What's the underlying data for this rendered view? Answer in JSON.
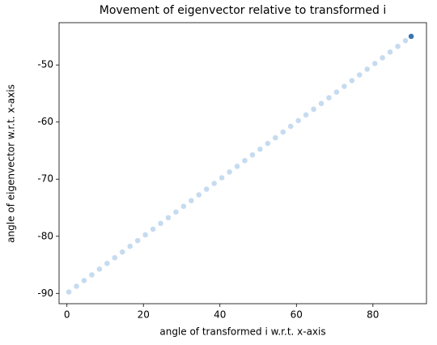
{
  "chart_data": {
    "type": "scatter",
    "title": "Movement of eigenvector relative to transformed i",
    "x_label": "angle of transformed i w.r.t. x-axis",
    "y_label": "angle of eigenvector w.r.t. x-axis",
    "series": [
      {
        "color": "#c6dbef",
        "x": [
          0.5,
          2.5,
          4.5,
          6.5,
          8.5,
          10.5,
          12.5,
          14.5,
          16.5,
          18.5,
          20.5,
          22.5,
          24.5,
          26.5,
          28.5,
          30.5,
          32.5,
          34.5,
          36.5,
          38.5,
          40.5,
          42.5,
          44.5,
          46.5,
          48.5,
          50.5,
          52.5,
          54.5,
          56.5,
          58.5,
          60.5,
          62.5,
          64.5,
          66.5,
          68.5,
          70.5,
          72.5,
          74.5,
          76.5,
          78.5,
          80.5,
          82.5,
          84.5,
          86.5,
          88.5
        ],
        "values": [
          -89.75,
          -88.75,
          -87.75,
          -86.75,
          -85.75,
          -84.75,
          -83.75,
          -82.75,
          -81.75,
          -80.75,
          -79.75,
          -78.75,
          -77.75,
          -76.75,
          -75.75,
          -74.75,
          -73.75,
          -72.75,
          -71.75,
          -70.75,
          -69.75,
          -68.75,
          -67.75,
          -66.75,
          -65.75,
          -64.75,
          -63.75,
          -62.75,
          -61.75,
          -60.75,
          -59.75,
          -58.75,
          -57.75,
          -56.75,
          -55.75,
          -54.75,
          -53.75,
          -52.75,
          -51.75,
          -50.75,
          -49.75,
          -48.75,
          -47.75,
          -46.75,
          -45.75
        ]
      },
      {
        "color": "#3a75b0",
        "x": [
          90
        ],
        "values": [
          -45
        ]
      }
    ],
    "xlim": [
      -2.05,
      94.0
    ],
    "xticks": [
      0,
      20,
      40,
      60,
      80
    ],
    "ylim": [
      -91.8,
      -42.6
    ],
    "yticks": [
      -90,
      -80,
      -70,
      -60,
      -50
    ]
  }
}
